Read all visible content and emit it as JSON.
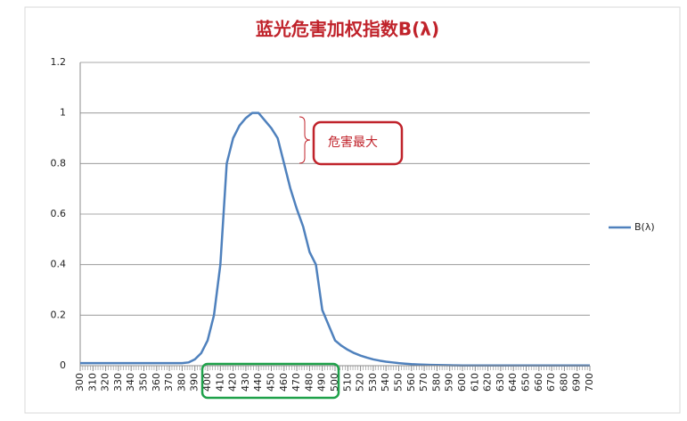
{
  "chart_data": {
    "type": "line",
    "title": "蓝光危害加权指数B(λ)",
    "x": [
      300,
      305,
      310,
      315,
      320,
      325,
      330,
      335,
      340,
      345,
      350,
      355,
      360,
      365,
      370,
      375,
      380,
      385,
      390,
      395,
      400,
      405,
      410,
      415,
      420,
      425,
      430,
      435,
      440,
      445,
      450,
      455,
      460,
      465,
      470,
      475,
      480,
      485,
      490,
      495,
      500,
      505,
      510,
      515,
      520,
      525,
      530,
      535,
      540,
      545,
      550,
      555,
      560,
      565,
      570,
      575,
      580,
      585,
      590,
      595,
      600,
      605,
      610,
      615,
      620,
      625,
      630,
      635,
      640,
      645,
      650,
      655,
      660,
      665,
      670,
      675,
      680,
      685,
      690,
      695,
      700
    ],
    "series": [
      {
        "name": "B(λ)",
        "color": "#4f81bd",
        "values": [
          0.01,
          0.01,
          0.01,
          0.01,
          0.01,
          0.01,
          0.01,
          0.01,
          0.01,
          0.01,
          0.01,
          0.01,
          0.01,
          0.01,
          0.01,
          0.01,
          0.01,
          0.013,
          0.025,
          0.05,
          0.1,
          0.2,
          0.4,
          0.8,
          0.9,
          0.95,
          0.98,
          1,
          1,
          0.97,
          0.94,
          0.9,
          0.8,
          0.7,
          0.62,
          0.55,
          0.45,
          0.4,
          0.22,
          0.16,
          0.1,
          0.079,
          0.063,
          0.05,
          0.04,
          0.032,
          0.025,
          0.02,
          0.016,
          0.013,
          0.01,
          0.008,
          0.006,
          0.005,
          0.004,
          0.003,
          0.0025,
          0.002,
          0.0016,
          0.0013,
          0.001,
          0.001,
          0.001,
          0.001,
          0.001,
          0.001,
          0.001,
          0.001,
          0.001,
          0.001,
          0.001,
          0.001,
          0.001,
          0.001,
          0.001,
          0.001,
          0.001,
          0.001,
          0.001,
          0.001,
          0.001
        ]
      }
    ],
    "xlim": [
      300,
      700
    ],
    "xticks": [
      300,
      310,
      320,
      330,
      340,
      350,
      360,
      370,
      380,
      390,
      400,
      410,
      420,
      430,
      440,
      450,
      460,
      470,
      480,
      490,
      500,
      510,
      520,
      530,
      540,
      550,
      560,
      570,
      580,
      590,
      600,
      610,
      620,
      630,
      640,
      650,
      660,
      670,
      680,
      690,
      700
    ],
    "ylim": [
      0,
      1.2
    ],
    "yticks": [
      0,
      0.2,
      0.4,
      0.6,
      0.8,
      1,
      1.2
    ],
    "grid": true,
    "legend": "right",
    "annotation": "危害最大"
  }
}
